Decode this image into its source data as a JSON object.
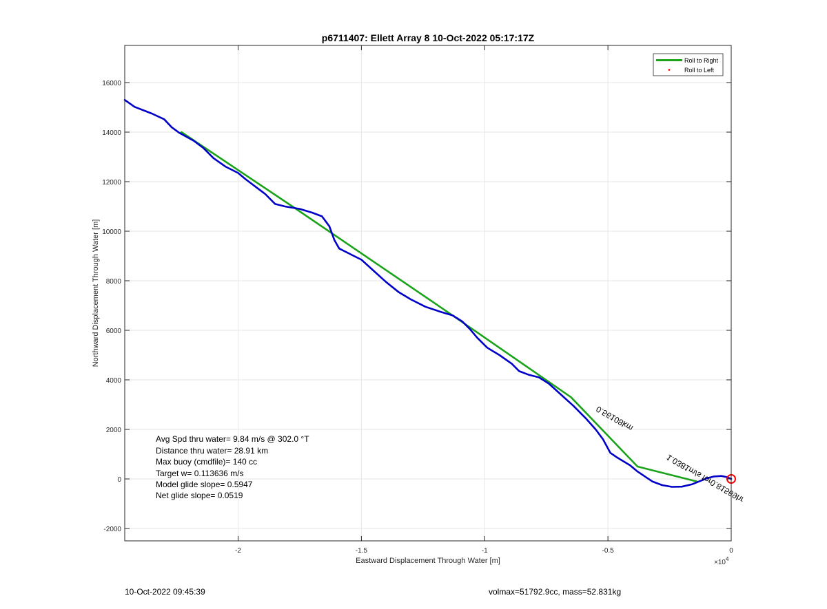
{
  "chart_data": {
    "type": "line",
    "title": "p6711407: Ellett Array 8 10-Oct-2022 05:17:17Z",
    "xlabel": "Eastward Displacement Through Water [m]",
    "ylabel": "Northward Displacement Through Water [m]",
    "x_exponent_label": "×10",
    "x_exponent_power": "4",
    "xlim": [
      -24600,
      0
    ],
    "ylim": [
      -2500,
      17500
    ],
    "x_ticks": [
      -20000,
      -15000,
      -10000,
      -5000,
      0
    ],
    "x_tick_labels": [
      "-2",
      "-1.5",
      "-1",
      "-0.5",
      "0"
    ],
    "y_ticks": [
      -2000,
      0,
      2000,
      4000,
      6000,
      8000,
      10000,
      12000,
      14000,
      16000
    ],
    "y_tick_labels": [
      "-2000",
      "0",
      "2000",
      "4000",
      "6000",
      "8000",
      "10000",
      "12000",
      "14000",
      "16000"
    ],
    "grid": true,
    "legend_placement": "top-right",
    "legend": [
      {
        "label": "Roll to Right",
        "color": "#1aa31a",
        "style": "line"
      },
      {
        "label": "Roll to Left",
        "color": "#ff0000",
        "style": "dot"
      }
    ],
    "series": [
      {
        "name": "Roll to Right",
        "color": "#1aa31a",
        "points": [
          [
            -22300,
            14000
          ],
          [
            -17800,
            11000
          ],
          [
            -11300,
            6600
          ],
          [
            -6500,
            3300
          ],
          [
            -3800,
            500
          ],
          [
            -1400,
            -100
          ]
        ]
      },
      {
        "color": "#0000c8",
        "points": [
          [
            -24600,
            15300
          ],
          [
            -24200,
            15020
          ],
          [
            -23500,
            14750
          ],
          [
            -23000,
            14520
          ],
          [
            -22700,
            14200
          ],
          [
            -22400,
            13980
          ],
          [
            -21800,
            13650
          ],
          [
            -21400,
            13350
          ],
          [
            -21000,
            12950
          ],
          [
            -20500,
            12600
          ],
          [
            -20000,
            12350
          ],
          [
            -19700,
            12100
          ],
          [
            -19300,
            11800
          ],
          [
            -18900,
            11500
          ],
          [
            -18500,
            11100
          ],
          [
            -18100,
            11000
          ],
          [
            -17500,
            10900
          ],
          [
            -17000,
            10750
          ],
          [
            -16600,
            10600
          ],
          [
            -16300,
            10200
          ],
          [
            -16100,
            9650
          ],
          [
            -15900,
            9300
          ],
          [
            -15500,
            9100
          ],
          [
            -15000,
            8850
          ],
          [
            -14500,
            8400
          ],
          [
            -14000,
            7950
          ],
          [
            -13500,
            7550
          ],
          [
            -13000,
            7250
          ],
          [
            -12400,
            6950
          ],
          [
            -11800,
            6750
          ],
          [
            -11300,
            6600
          ],
          [
            -10900,
            6350
          ],
          [
            -10600,
            6050
          ],
          [
            -10300,
            5700
          ],
          [
            -9900,
            5300
          ],
          [
            -9400,
            5000
          ],
          [
            -8900,
            4650
          ],
          [
            -8600,
            4350
          ],
          [
            -8200,
            4200
          ],
          [
            -7800,
            4100
          ],
          [
            -7400,
            3850
          ],
          [
            -6900,
            3400
          ],
          [
            -6400,
            2950
          ],
          [
            -5900,
            2450
          ],
          [
            -5500,
            2000
          ],
          [
            -5200,
            1600
          ],
          [
            -4900,
            1050
          ],
          [
            -4600,
            850
          ],
          [
            -4100,
            550
          ],
          [
            -3800,
            300
          ],
          [
            -3500,
            100
          ],
          [
            -3200,
            -100
          ],
          [
            -2800,
            -250
          ],
          [
            -2400,
            -320
          ],
          [
            -2000,
            -310
          ],
          [
            -1600,
            -220
          ],
          [
            -1300,
            -100
          ],
          [
            -1000,
            20
          ],
          [
            -700,
            100
          ],
          [
            -400,
            120
          ],
          [
            -200,
            80
          ],
          [
            0,
            0
          ]
        ]
      }
    ],
    "end_marker": {
      "x": 0,
      "y": 0,
      "color": "#ff0000",
      "shape": "circle"
    },
    "mirrored_label": "0.56108km",
    "mirrored_label_2": "1.0381m/s for0.81569hr",
    "stats": [
      "Avg Spd thru water=  9.84 m/s @ 302.0 °T",
      "Distance thru water= 28.91 km",
      "Max buoy (cmdfile)= 140 cc",
      "Target w= 0.113636 m/s",
      "Model glide slope= 0.5947",
      "Net glide slope= 0.0519"
    ]
  },
  "footer": {
    "date": "10-Oct-2022 09:45:39",
    "vol_mass": "volmax=51792.9cc, mass=52.831kg"
  }
}
